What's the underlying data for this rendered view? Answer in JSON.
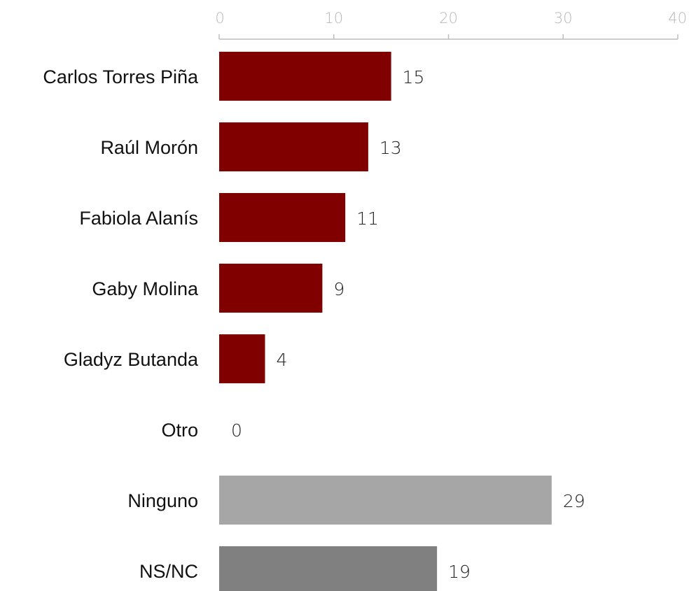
{
  "chart_data": {
    "type": "bar",
    "orientation": "horizontal",
    "categories": [
      "Carlos Torres Piña",
      "Raúl Morón",
      "Fabiola Alanís",
      "Gaby Molina",
      "Gladyz Butanda",
      "Otro",
      "Ninguno",
      "NS/NC"
    ],
    "values": [
      15,
      13,
      11,
      9,
      4,
      0,
      29,
      19
    ],
    "value_labels": [
      "15",
      "13",
      "11",
      "9",
      "4",
      "0",
      "29",
      "19"
    ],
    "bar_colors": [
      "#800000",
      "#800000",
      "#800000",
      "#800000",
      "#800000",
      "#800000",
      "#a6a6a6",
      "#808080"
    ],
    "xlim": [
      0,
      40
    ],
    "x_ticks": [
      0,
      10,
      20,
      30,
      40
    ],
    "x_tick_labels": [
      "0",
      "10",
      "20",
      "30",
      "40"
    ],
    "x_axis_position": "top",
    "title": "",
    "xlabel": "",
    "ylabel": "",
    "grid": false,
    "legend": "none"
  }
}
